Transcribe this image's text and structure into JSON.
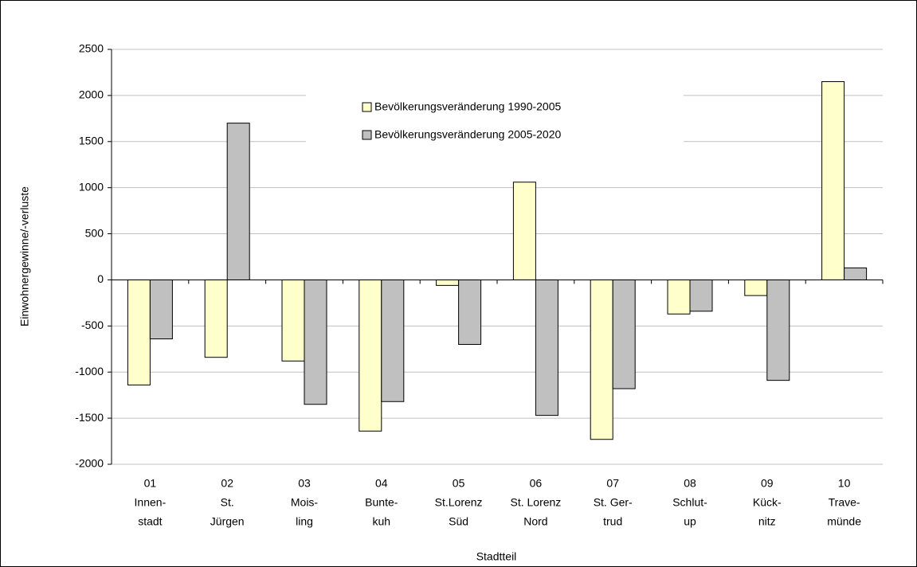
{
  "chart_data": {
    "type": "bar",
    "categories": [
      [
        "01",
        "Innen-",
        "stadt"
      ],
      [
        "02",
        "St.",
        "Jürgen"
      ],
      [
        "03",
        "Mois-",
        "ling"
      ],
      [
        "04",
        "Bunte-",
        "kuh"
      ],
      [
        "05",
        "St.Lorenz",
        "Süd"
      ],
      [
        "06",
        "St. Lorenz",
        "Nord"
      ],
      [
        "07",
        "St. Ger-",
        "trud"
      ],
      [
        "08",
        "Schlut-",
        "up"
      ],
      [
        "09",
        "Kück-",
        "nitz"
      ],
      [
        "10",
        "Trave-",
        "münde"
      ]
    ],
    "series": [
      {
        "name": "Bevölkerungsveränderung 1990-2005",
        "color": "#ffffcc",
        "values": [
          -1140,
          -840,
          -880,
          -1640,
          -60,
          1060,
          -1730,
          -370,
          -170,
          2150
        ]
      },
      {
        "name": "Bevölkerungsveränderung 2005-2020",
        "color": "#c0c0c0",
        "values": [
          -640,
          1700,
          -1350,
          -1320,
          -700,
          -1470,
          -1180,
          -340,
          -1090,
          130
        ]
      }
    ],
    "xlabel": "Stadtteil",
    "ylabel": "Einwohnergewinne/-verluste",
    "ylim": [
      -2000,
      2500
    ],
    "yticks": [
      -2000,
      -1500,
      -1000,
      -500,
      0,
      500,
      1000,
      1500,
      2000,
      2500
    ],
    "grid": true,
    "legend": "top"
  }
}
